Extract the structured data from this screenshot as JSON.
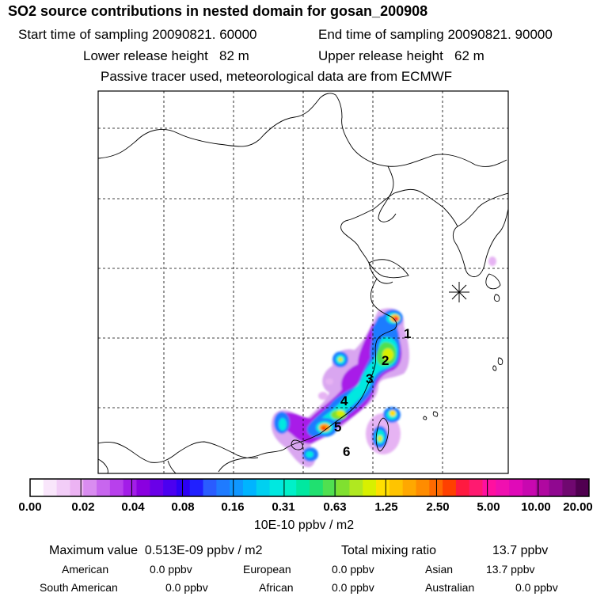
{
  "title": "SO2 source contributions in nested domain for gosan_200908",
  "header": {
    "start_label": "Start time of sampling 20090821. 60000",
    "end_label": "End time of sampling 20090821. 90000",
    "lower_label": "Lower release height   82 m",
    "upper_label": "Upper release height   62 m",
    "tracer_note": "Passive tracer used, meteorological data are from ECMWF"
  },
  "map": {
    "receptor_marker": "asterisk-icon",
    "source_labels": [
      "1",
      "2",
      "3",
      "4",
      "5",
      "6"
    ]
  },
  "colorbar": {
    "tick_labels": [
      "0.00",
      "0.02",
      "0.04",
      "0.08",
      "0.16",
      "0.31",
      "0.63",
      "1.25",
      "2.50",
      "5.00",
      "10.00",
      "20.00"
    ],
    "units": "10E-10 ppbv / m2",
    "colors": [
      "#ffffff",
      "#f9e6fb",
      "#f2cdf7",
      "#ecb3f3",
      "#d98cf0",
      "#c866ee",
      "#b840ec",
      "#a31de8",
      "#8a00e0",
      "#6a00e8",
      "#4b00f0",
      "#2c00f5",
      "#2020ff",
      "#2a5cff",
      "#1f7bff",
      "#0f97ff",
      "#00b4ff",
      "#00d0f0",
      "#00e8e0",
      "#00f0c8",
      "#00e8a0",
      "#20e070",
      "#50e050",
      "#80e030",
      "#b0e820",
      "#d8f000",
      "#ffe000",
      "#ffc400",
      "#ffa800",
      "#ff8c00",
      "#ff6a00",
      "#ff4000",
      "#ff1a40",
      "#ff1a70",
      "#ff10a0",
      "#f010b0",
      "#e00ab8",
      "#c808b0",
      "#b008a0",
      "#900890",
      "#700870",
      "#500050"
    ]
  },
  "stats": {
    "max_value": "Maximum value  0.513E-09 ppbv / m2",
    "total_label": "Total mixing ratio",
    "total_value": "13.7 ppbv",
    "regions": [
      {
        "name": "American",
        "value": "0.0 ppbv"
      },
      {
        "name": "European",
        "value": "0.0 ppbv"
      },
      {
        "name": "Asian",
        "value": "13.7 ppbv"
      },
      {
        "name": "South American",
        "value": "0.0 ppbv"
      },
      {
        "name": "African",
        "value": "0.0 ppbv"
      },
      {
        "name": "Australian",
        "value": "0.0 ppbv"
      }
    ]
  }
}
